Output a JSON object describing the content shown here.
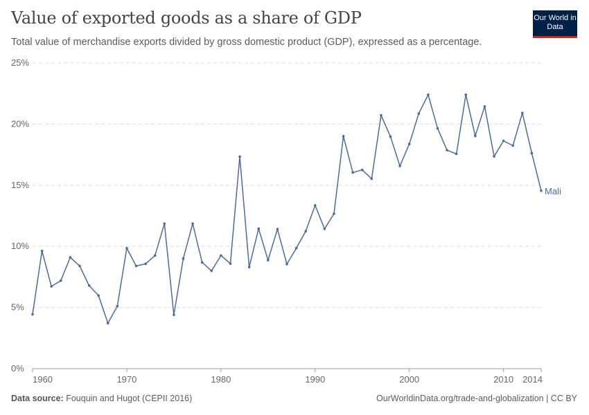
{
  "header": {
    "title": "Value of exported goods as a share of GDP",
    "subtitle": "Total value of merchandise exports divided by gross domestic product (GDP), expressed as a percentage.",
    "logo": "Our World in Data"
  },
  "footer": {
    "source_label": "Data source:",
    "source": "Fouquin and Hugot (CEPII 2016)",
    "url": "OurWorldinData.org/trade-and-globalization | CC BY"
  },
  "chart_data": {
    "type": "line",
    "title": "Value of exported goods as a share of GDP",
    "xlim": [
      1960,
      2014
    ],
    "ylim": [
      0,
      25
    ],
    "grid": true,
    "x_ticks": [
      "1960",
      "1970",
      "1980",
      "1990",
      "2000",
      "2010",
      "2014"
    ],
    "y_ticks": [
      "0%",
      "5%",
      "10%",
      "15%",
      "20%",
      "25%"
    ],
    "color": "#4c6a9c",
    "series": [
      {
        "name": "Mali",
        "x": [
          1960,
          1961,
          1962,
          1963,
          1964,
          1965,
          1966,
          1967,
          1968,
          1969,
          1970,
          1971,
          1972,
          1973,
          1974,
          1975,
          1976,
          1977,
          1978,
          1979,
          1980,
          1981,
          1982,
          1983,
          1984,
          1985,
          1986,
          1987,
          1988,
          1989,
          1990,
          1991,
          1992,
          1993,
          1994,
          1995,
          1996,
          1997,
          1998,
          1999,
          2000,
          2001,
          2002,
          2003,
          2004,
          2005,
          2006,
          2007,
          2008,
          2009,
          2010,
          2011,
          2012,
          2013,
          2014
        ],
        "values": [
          4.44,
          9.63,
          6.73,
          7.2,
          9.1,
          8.4,
          6.8,
          5.98,
          3.72,
          5.11,
          9.85,
          8.4,
          8.57,
          9.25,
          11.86,
          4.41,
          9.0,
          11.86,
          8.69,
          8.0,
          9.25,
          8.59,
          17.34,
          8.31,
          11.45,
          8.87,
          11.41,
          8.55,
          9.85,
          11.24,
          13.35,
          11.43,
          12.67,
          19.01,
          16.04,
          16.25,
          15.53,
          20.72,
          18.97,
          16.57,
          18.37,
          20.86,
          22.4,
          19.65,
          17.87,
          17.56,
          22.4,
          19.03,
          21.44,
          17.36,
          18.63,
          18.24,
          20.91,
          17.62,
          14.55
        ]
      }
    ]
  }
}
